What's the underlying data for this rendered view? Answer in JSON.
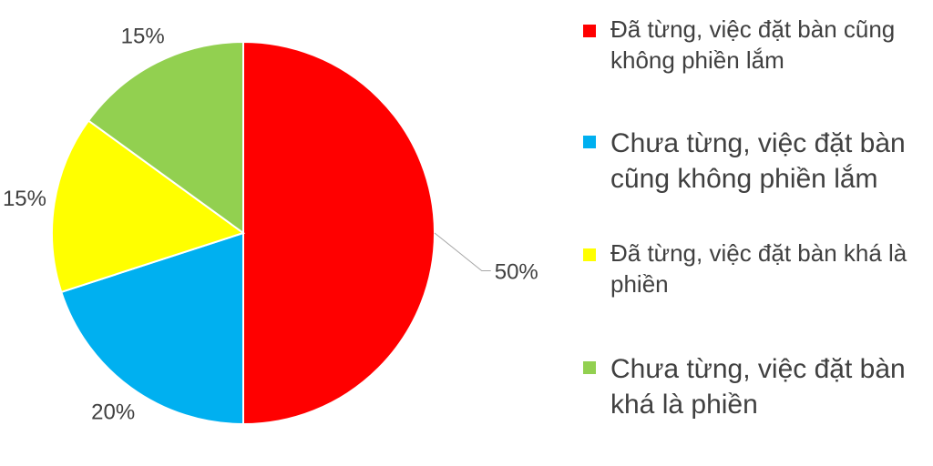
{
  "chart_data": {
    "type": "pie",
    "categories": [
      "Đã từng, việc đặt bàn cũng không phiền lắm",
      "Chưa từng, việc đặt bàn cũng không phiền lắm",
      "Đã từng, việc đặt bàn khá là phiền",
      "Chưa từng, việc đặt bàn khá là phiền"
    ],
    "values": [
      50,
      20,
      15,
      15
    ],
    "value_labels": [
      "50%",
      "20%",
      "15%",
      "15%"
    ],
    "colors": [
      "#FF0000",
      "#00B0F0",
      "#FFFF00",
      "#92D050"
    ],
    "start_angle_deg": 0,
    "direction": "clockwise",
    "legend_position": "right",
    "title": "",
    "grid": false
  }
}
